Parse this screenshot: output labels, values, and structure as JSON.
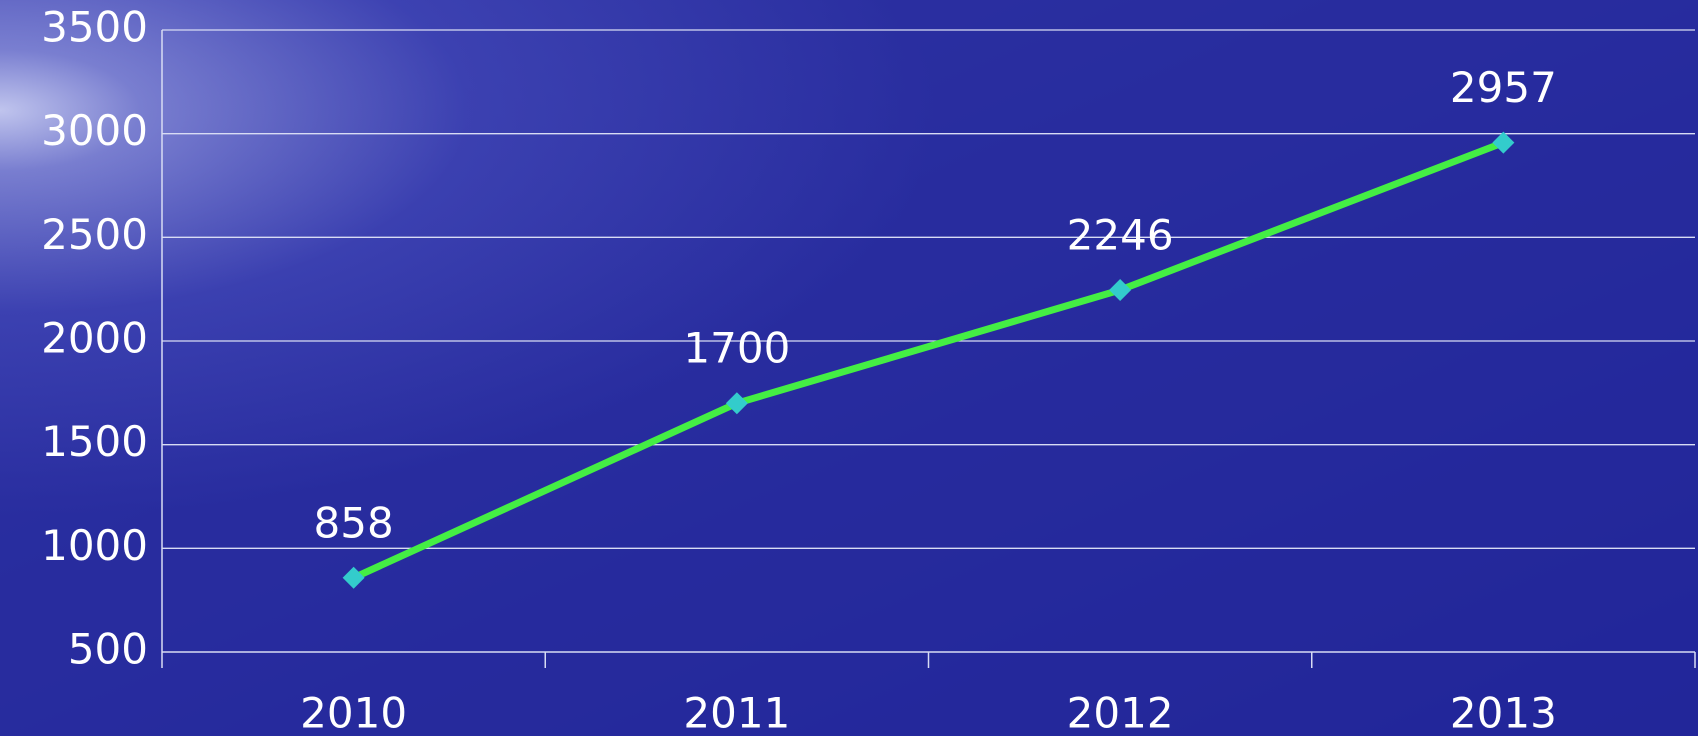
{
  "chart_data": {
    "type": "line",
    "categories": [
      "2010",
      "2011",
      "2012",
      "2013"
    ],
    "values": [
      858,
      1700,
      2246,
      2957
    ],
    "color": "#44ee44",
    "marker_color": "#33cccc",
    "ylim": [
      500,
      3500
    ],
    "yticks": [
      500,
      1000,
      1500,
      2000,
      2500,
      3000,
      3500
    ],
    "grid": true,
    "data_labels": true
  }
}
